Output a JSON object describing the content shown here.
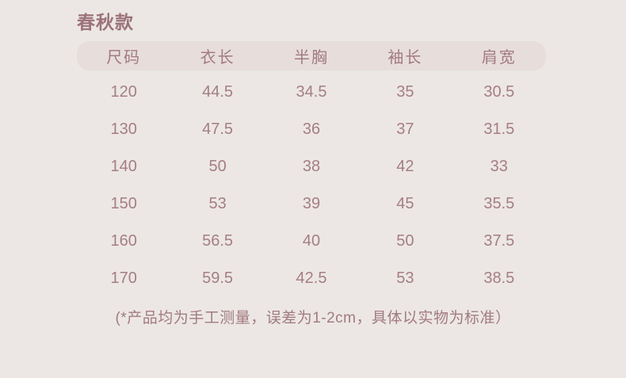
{
  "page": {
    "background_color": "#ECE7E5",
    "header_bar_color": "#E7DDDB",
    "text_color": "#A27B80",
    "title_color": "#9C7378"
  },
  "title": "春秋款",
  "footnote": "(*产品均为手工测量，误差为1-2cm，具体以实物为标准）",
  "chart_data": {
    "type": "table",
    "title": "春秋款",
    "columns": [
      "尺码",
      "衣长",
      "半胸",
      "袖长",
      "肩宽"
    ],
    "rows": [
      [
        "120",
        "44.5",
        "34.5",
        "35",
        "30.5"
      ],
      [
        "130",
        "47.5",
        "36",
        "37",
        "31.5"
      ],
      [
        "140",
        "50",
        "38",
        "42",
        "33"
      ],
      [
        "150",
        "53",
        "39",
        "45",
        "35.5"
      ],
      [
        "160",
        "56.5",
        "40",
        "50",
        "37.5"
      ],
      [
        "170",
        "59.5",
        "42.5",
        "53",
        "38.5"
      ]
    ],
    "note": "(*产品均为手工测量，误差为1-2cm，具体以实物为标准）",
    "layout": "header row has rounded pill background; rows centered in 5 equal columns"
  }
}
